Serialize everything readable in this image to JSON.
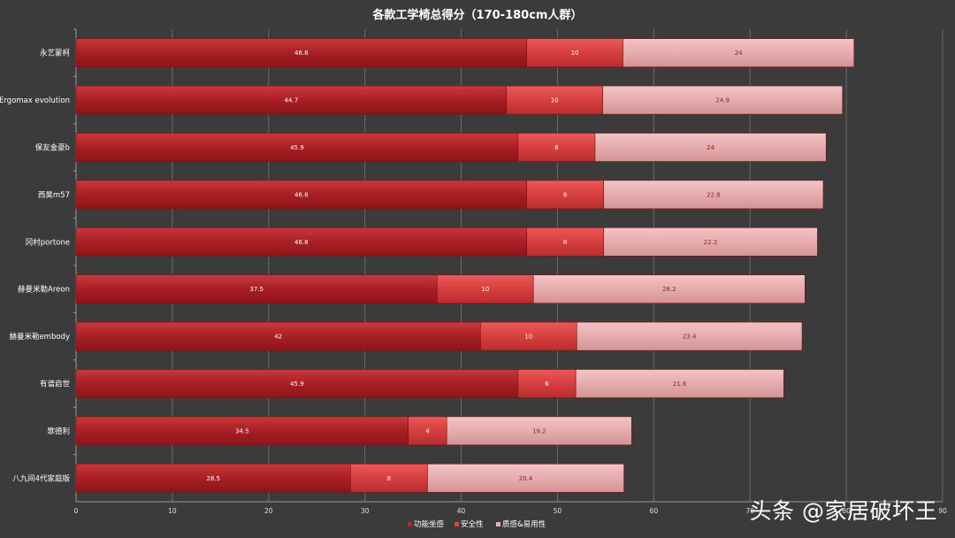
{
  "chart_data": {
    "type": "bar",
    "orientation": "horizontal",
    "stacked": true,
    "title": "各款工学椅总得分（170-180cm人群）",
    "xlabel": "",
    "ylabel": "",
    "xlim": [
      0,
      90
    ],
    "x_ticks": [
      "0",
      "10",
      "20",
      "30",
      "40",
      "50",
      "60",
      "70",
      "80",
      "90"
    ],
    "grid": true,
    "legend_position": "bottom",
    "categories": [
      "永艺蒙柯",
      "Ergomax evolution",
      "保友金豪b",
      "西昊m57",
      "冈村portone",
      "赫曼米勒Areon",
      "赫曼米勒embody",
      "有谱启世",
      "歌德利",
      "八九间4代家庭版"
    ],
    "series": [
      {
        "name": "功能坐感",
        "color": "#b8262b",
        "values": [
          46.8,
          44.7,
          45.9,
          46.8,
          46.8,
          37.5,
          42,
          45.9,
          34.5,
          28.5
        ],
        "labels": [
          "46.8",
          "44.7",
          "45.9",
          "46.8",
          "46.8",
          "37.5",
          "42",
          "45.9",
          "34.5",
          "28.5"
        ]
      },
      {
        "name": "安全性",
        "color": "#d94545",
        "values": [
          10,
          10,
          8,
          8,
          8,
          10,
          10,
          6,
          4,
          8
        ],
        "labels": [
          "10",
          "10",
          "8",
          "8",
          "8",
          "10",
          "10",
          "6",
          "4",
          "8"
        ]
      },
      {
        "name": "质感&易用性",
        "color": "#e6aeb0",
        "values": [
          24,
          24.9,
          24,
          22.8,
          22.2,
          28.2,
          23.4,
          21.6,
          19.2,
          20.4
        ],
        "labels": [
          "24",
          "24.9",
          "24",
          "22.8",
          "22.2",
          "28.2",
          "23.4",
          "21.6",
          "19.2",
          "20.4"
        ]
      }
    ]
  },
  "watermark": "头条 @家居破坏王"
}
